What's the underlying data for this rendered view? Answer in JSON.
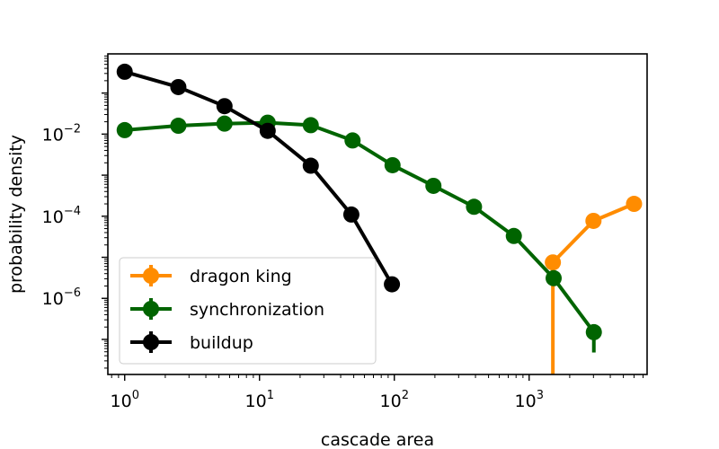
{
  "chart_data": {
    "type": "line",
    "xlabel": "cascade area",
    "ylabel": "probability density",
    "xscale": "log",
    "yscale": "log",
    "xlim": [
      0.75,
      7500
    ],
    "ylim": [
      1.4e-08,
      0.9
    ],
    "grid": false,
    "legend_position": "lower-left",
    "x_ticks": [
      {
        "value": 1,
        "base": "10",
        "exp": "0"
      },
      {
        "value": 10,
        "base": "10",
        "exp": "1"
      },
      {
        "value": 100,
        "base": "10",
        "exp": "2"
      },
      {
        "value": 1000,
        "base": "10",
        "exp": "3"
      }
    ],
    "y_ticks": [
      {
        "value": 0.01,
        "base": "10",
        "exp": "−2"
      },
      {
        "value": 0.0001,
        "base": "10",
        "exp": "−4"
      },
      {
        "value": 1e-06,
        "base": "10",
        "exp": "−6"
      }
    ],
    "series": [
      {
        "name": "dragon king",
        "color": "#ff8c00",
        "x": [
          1500,
          3000,
          6000
        ],
        "y": [
          7.5e-06,
          7.7e-05,
          0.0002
        ],
        "errorbar_down": [
          1.4e-08,
          null,
          null
        ]
      },
      {
        "name": "synchronization",
        "color": "#006400",
        "x": [
          1.0,
          2.5,
          5.5,
          11.5,
          24,
          49,
          97,
          195,
          390,
          770,
          1520,
          3020
        ],
        "y": [
          0.0125,
          0.016,
          0.018,
          0.019,
          0.0165,
          0.007,
          0.00175,
          0.00055,
          0.00017,
          3.3e-05,
          3.1e-06,
          1.5e-07
        ],
        "errorbar_down": [
          null,
          null,
          null,
          null,
          null,
          null,
          null,
          null,
          null,
          null,
          null,
          4.8e-08
        ]
      },
      {
        "name": "buildup",
        "color": "#000000",
        "x": [
          1.0,
          2.5,
          5.5,
          11.5,
          24,
          48,
          96
        ],
        "y": [
          0.33,
          0.14,
          0.048,
          0.012,
          0.0017,
          0.00011,
          2.2e-06
        ],
        "errorbar_down": [
          null,
          null,
          null,
          null,
          null,
          null,
          null
        ]
      }
    ]
  }
}
